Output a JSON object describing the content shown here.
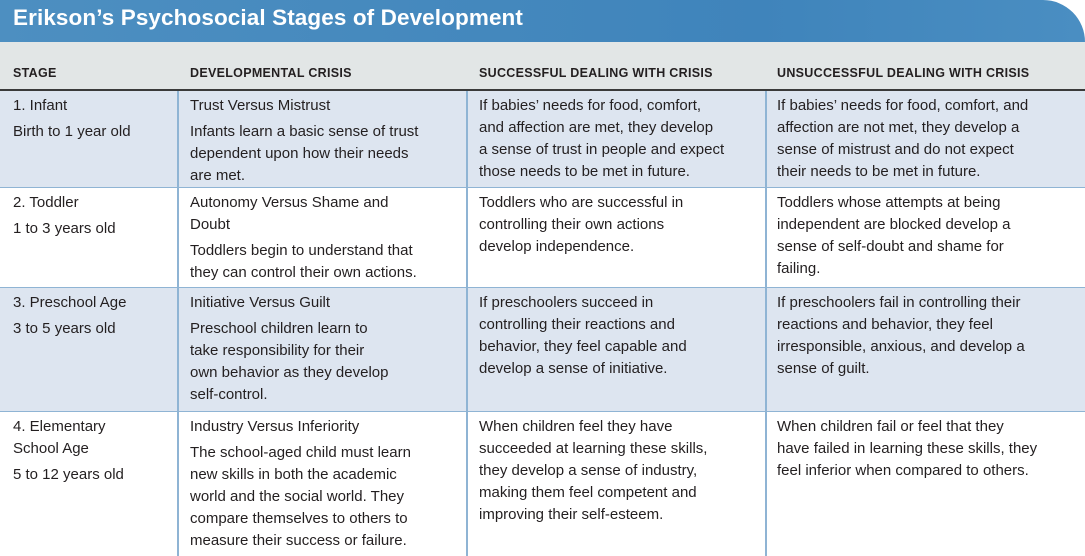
{
  "title": "Erikson’s Psychosocial Stages of Development",
  "headers": [
    "STAGE",
    "DEVELOPMENTAL CRISIS",
    "SUCCESSFUL DEALING WITH CRISIS",
    "UNSUCCESSFUL DEALING WITH CRISIS"
  ],
  "rows": [
    {
      "stage": [
        "1. Infant"
      ],
      "age": "Birth to 1 year old",
      "crisis": [
        "Trust Versus Mistrust"
      ],
      "crisis_desc": [
        "Infants learn a basic sense of trust",
        "dependent upon how their needs",
        "are met."
      ],
      "success": [
        "If babies’ needs for food, comfort,",
        "and affection are met, they develop",
        "a sense of trust in people and expect",
        "those needs to be met in future."
      ],
      "failure": [
        "If babies’ needs for food, comfort, and",
        "affection are not met, they develop a",
        "sense of mistrust and do not expect",
        "their needs to be met in future."
      ]
    },
    {
      "stage": [
        "2. Toddler"
      ],
      "age": "1 to 3 years old",
      "crisis": [
        "Autonomy Versus Shame and",
        "Doubt"
      ],
      "crisis_desc": [
        "Toddlers begin to understand that",
        "they can control their own actions."
      ],
      "success": [
        "Toddlers who are successful in",
        "controlling their own actions",
        "develop independence."
      ],
      "failure": [
        "Toddlers whose attempts at being",
        "independent are blocked develop a",
        "sense of self-doubt and shame for",
        "failing."
      ]
    },
    {
      "stage": [
        "3. Preschool Age"
      ],
      "age": "3 to 5 years old",
      "crisis": [
        "Initiative Versus Guilt"
      ],
      "crisis_desc": [
        "Preschool children learn to",
        "take responsibility for their",
        "own behavior as they develop",
        "self-control."
      ],
      "success": [
        "If preschoolers succeed in",
        "controlling their reactions and",
        "behavior, they feel capable and",
        "develop a sense of initiative."
      ],
      "failure": [
        "If preschoolers fail in controlling their",
        "reactions and behavior, they feel",
        "irresponsible, anxious, and develop a",
        "sense of guilt."
      ]
    },
    {
      "stage": [
        "4. Elementary",
        "School Age"
      ],
      "age": "5 to 12 years old",
      "crisis": [
        "Industry Versus Inferiority"
      ],
      "crisis_desc": [
        "The school-aged child must learn",
        "new skills in both the academic",
        "world and the social world. They",
        "compare themselves to others to",
        "measure their success or failure."
      ],
      "success": [
        "When children feel they have",
        "succeeded at learning these skills,",
        "they develop a sense of industry,",
        "making them feel competent and",
        "improving their self-esteem."
      ],
      "failure": [
        "When children fail or feel that they",
        "have failed in learning these skills, they",
        "feel inferior when compared to others."
      ]
    }
  ]
}
